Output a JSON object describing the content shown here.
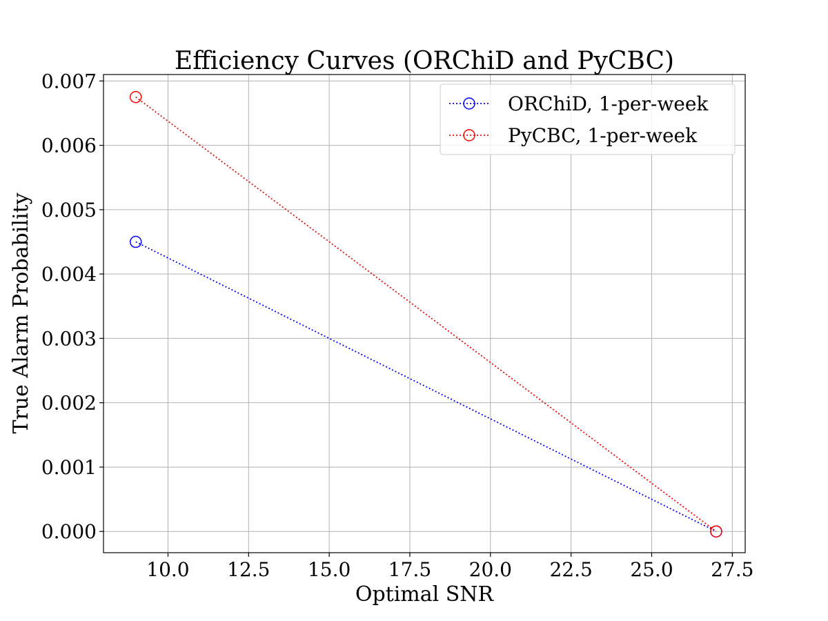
{
  "chart_data": {
    "type": "line",
    "title": "Efficiency Curves (ORChiD and PyCBC)",
    "xlabel": "Optimal SNR",
    "ylabel": "True Alarm Probability",
    "xlim": [
      8.0,
      27.9
    ],
    "ylim": [
      -0.00033,
      0.0071
    ],
    "xticks": [
      10.0,
      12.5,
      15.0,
      17.5,
      20.0,
      22.5,
      25.0,
      27.5
    ],
    "xtick_labels": [
      "10.0",
      "12.5",
      "15.0",
      "17.5",
      "20.0",
      "22.5",
      "25.0",
      "27.5"
    ],
    "yticks": [
      0.0,
      0.001,
      0.002,
      0.003,
      0.004,
      0.005,
      0.006,
      0.007
    ],
    "ytick_labels": [
      "0.000",
      "0.001",
      "0.002",
      "0.003",
      "0.004",
      "0.005",
      "0.006",
      "0.007"
    ],
    "grid": true,
    "legend_position": "top-right",
    "series": [
      {
        "name": "ORChiD, 1-per-week",
        "color": "#0000ff",
        "line_style": "dotted",
        "marker": "open-circle",
        "x": [
          9,
          27
        ],
        "y": [
          0.0045,
          0.0
        ]
      },
      {
        "name": "PyCBC, 1-per-week",
        "color": "#ff0000",
        "line_style": "dotted",
        "marker": "open-circle",
        "x": [
          9,
          27
        ],
        "y": [
          0.00675,
          0.0
        ]
      }
    ]
  }
}
